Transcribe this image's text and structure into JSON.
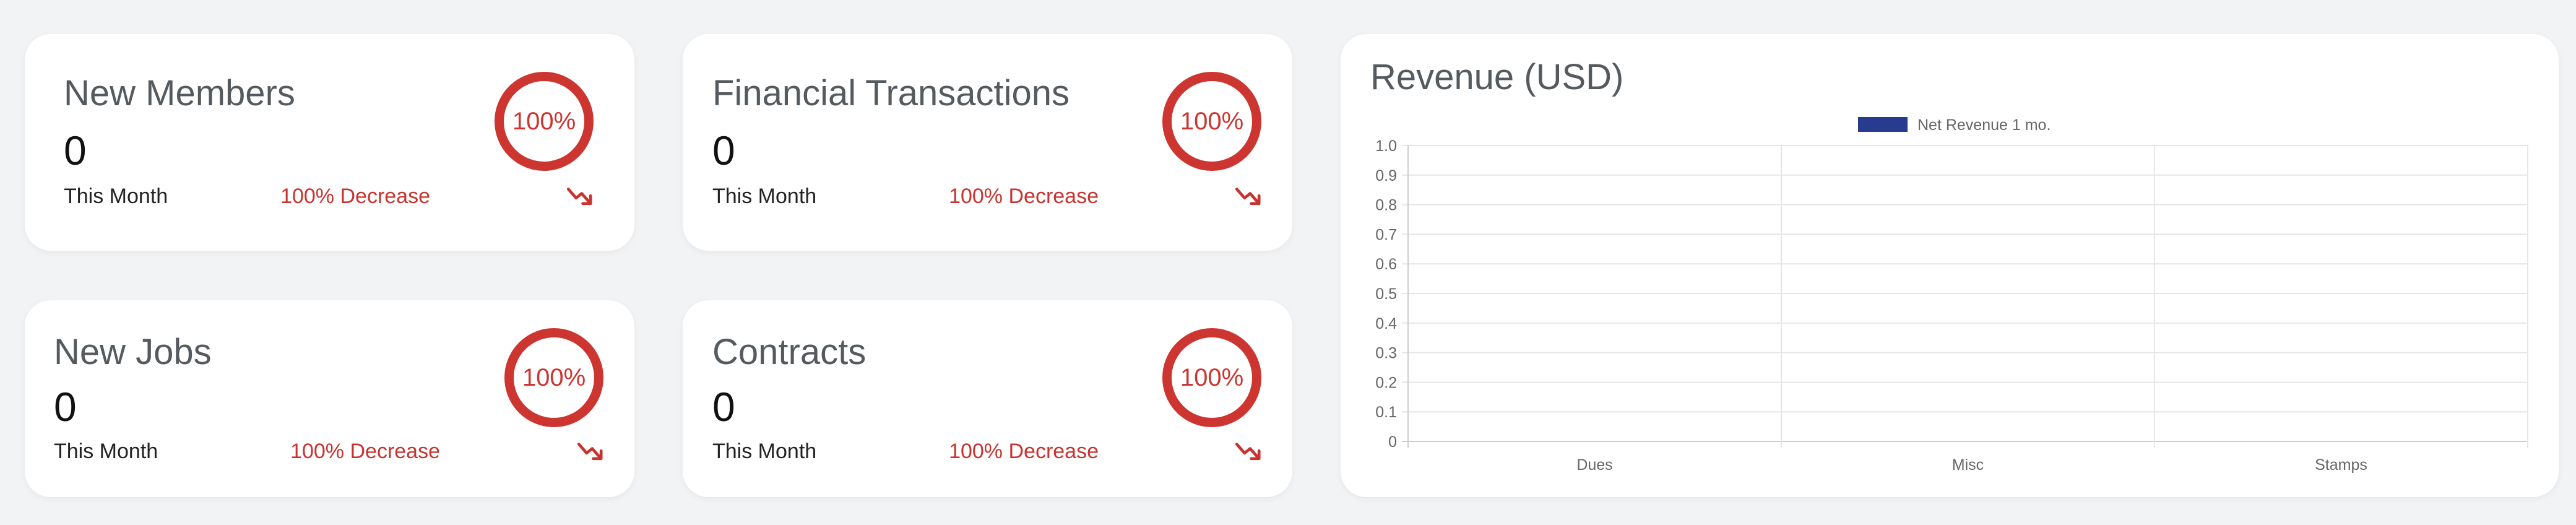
{
  "stats": [
    {
      "title": "New Members",
      "value": "0",
      "period": "This Month",
      "change": "100% Decrease",
      "ring_label": "100%"
    },
    {
      "title": "Financial Transactions",
      "value": "0",
      "period": "This Month",
      "change": "100% Decrease",
      "ring_label": "100%"
    },
    {
      "title": "New Jobs",
      "value": "0",
      "period": "This Month",
      "change": "100% Decrease",
      "ring_label": "100%"
    },
    {
      "title": "Contracts",
      "value": "0",
      "period": "This Month",
      "change": "100% Decrease",
      "ring_label": "100%"
    }
  ],
  "colors": {
    "accent_red": "#cc3530",
    "series_blue": "#273c8f"
  },
  "icons": {
    "trend": "trending-down-icon"
  },
  "chart_data": {
    "type": "bar",
    "title": "Revenue (USD)",
    "categories": [
      "Dues",
      "Misc",
      "Stamps"
    ],
    "series": [
      {
        "name": "Net Revenue 1 mo.",
        "values": [
          0,
          0,
          0
        ]
      }
    ],
    "ylim": [
      0,
      1.0
    ],
    "yticks": [
      "0",
      "0.1",
      "0.2",
      "0.3",
      "0.4",
      "0.5",
      "0.6",
      "0.7",
      "0.8",
      "0.9",
      "1.0"
    ],
    "grid": true,
    "legend": "top-center"
  }
}
